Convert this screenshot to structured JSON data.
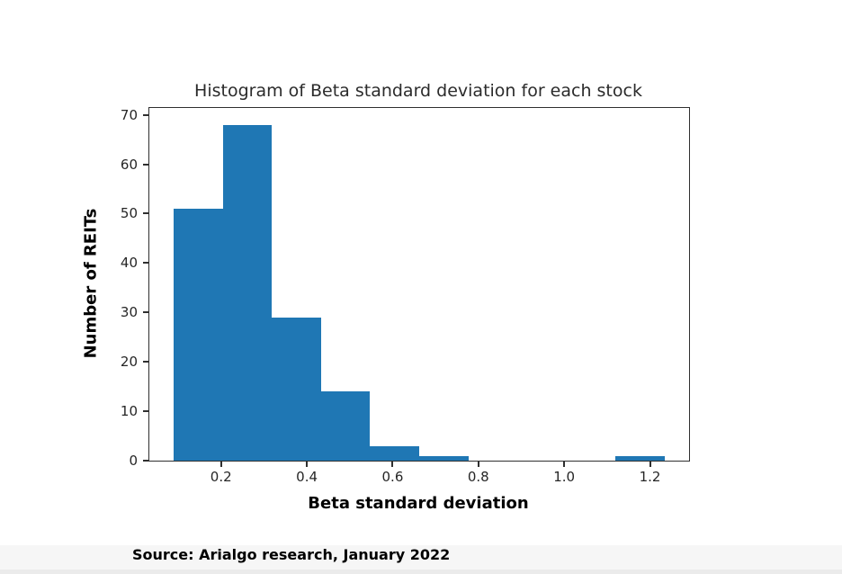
{
  "chart_data": {
    "type": "bar",
    "subtype": "histogram",
    "title": "Histogram of Beta standard deviation for each stock",
    "xlabel": "Beta standard deviation",
    "ylabel": "Number of REITs",
    "bin_edges": [
      0.09,
      0.2044,
      0.3188,
      0.4332,
      0.5476,
      0.662,
      0.7764,
      0.8908,
      1.0052,
      1.1196,
      1.234
    ],
    "counts": [
      51,
      68,
      29,
      14,
      3,
      1,
      0,
      0,
      0,
      1
    ],
    "xlim": [
      0.0328,
      1.2912
    ],
    "ylim": [
      0,
      71.4
    ],
    "xticks": [
      0.2,
      0.4,
      0.6,
      0.8,
      1.0,
      1.2
    ],
    "xtick_labels": [
      "0.2",
      "0.4",
      "0.6",
      "0.8",
      "1.0",
      "1.2"
    ],
    "yticks": [
      0,
      10,
      20,
      30,
      40,
      50,
      60,
      70
    ],
    "ytick_labels": [
      "0",
      "10",
      "20",
      "30",
      "40",
      "50",
      "60",
      "70"
    ],
    "grid": false,
    "legend": null,
    "bar_color": "#1f77b4",
    "axis_color": "#2f2f2f"
  },
  "footer": {
    "source_text": "Source: Arialgo research, January 2022"
  },
  "colors": {
    "background": "#ffffff",
    "footer_band": "#f6f6f6",
    "bar": "#1f77b4",
    "text": "#1a1a1a"
  }
}
